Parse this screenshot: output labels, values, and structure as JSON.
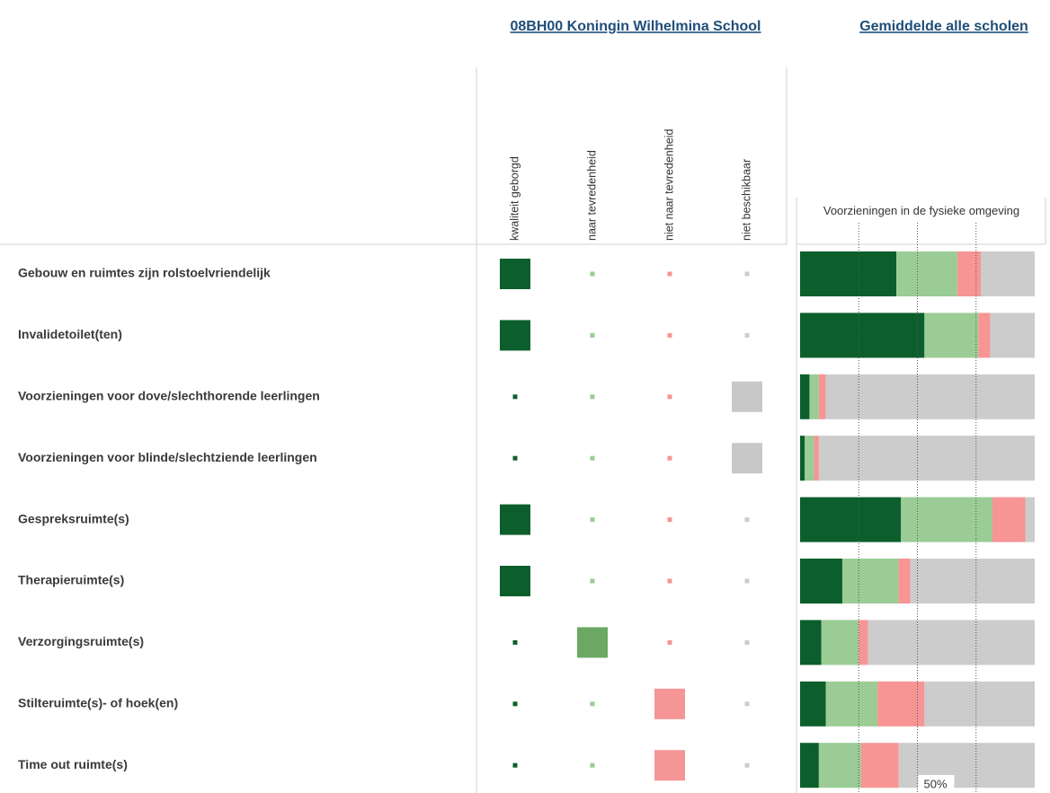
{
  "header": {
    "school": "08BH00 Koningin Wilhelmina School",
    "average": "Gemiddelde alle scholen"
  },
  "chart_data": {
    "type": "stacked-barh",
    "title": "Voorzieningen in de fysieke omgeving",
    "categories": [
      "Gebouw en ruimtes zijn rolstoelvriendelijk",
      "Invalidetoilet(ten)",
      "Voorzieningen voor dove/slechthorende leerlingen",
      "Voorzieningen voor blinde/slechtziende leerlingen",
      "Gespreksruimte(s)",
      "Therapieruimte(s)",
      "Verzorgingsruimte(s)",
      "Stilteruimte(s)- of hoek(en)",
      "Time out ruimte(s)"
    ],
    "xlim": [
      0,
      100
    ],
    "grid_lines": [
      25,
      50,
      75
    ],
    "xticks": [
      {
        "value": 50,
        "label": "50%"
      }
    ],
    "series": [
      {
        "name": "kwaliteit geborgd",
        "color": "#0c5f2c",
        "values": [
          41,
          53,
          4,
          2,
          43,
          18,
          9,
          11,
          8
        ]
      },
      {
        "name": "naar tevredenheid",
        "color": "#9bcc95",
        "values": [
          26,
          23,
          4,
          4,
          39,
          24,
          16,
          22,
          18
        ]
      },
      {
        "name": "niet naar tevredenheid",
        "color": "#f79494",
        "values": [
          10,
          5,
          3,
          2,
          14,
          5,
          4,
          20,
          16
        ]
      },
      {
        "name": "niet beschikbaar",
        "color": "#cccccc",
        "values": [
          23,
          19,
          89,
          92,
          4,
          53,
          71,
          47,
          58
        ]
      }
    ]
  },
  "matrix": {
    "colors": [
      "#0c5f2c",
      "#6aa863",
      "#f59595",
      "#c8c8c8"
    ],
    "rows": [
      [
        1,
        0,
        0,
        0
      ],
      [
        1,
        0,
        0,
        0
      ],
      [
        0,
        0,
        0,
        1
      ],
      [
        0,
        0,
        0,
        1
      ],
      [
        1,
        0,
        0,
        0
      ],
      [
        1,
        0,
        0,
        0
      ],
      [
        0,
        1,
        0,
        0
      ],
      [
        0,
        0,
        1,
        0
      ],
      [
        0,
        0,
        1,
        0
      ]
    ]
  }
}
